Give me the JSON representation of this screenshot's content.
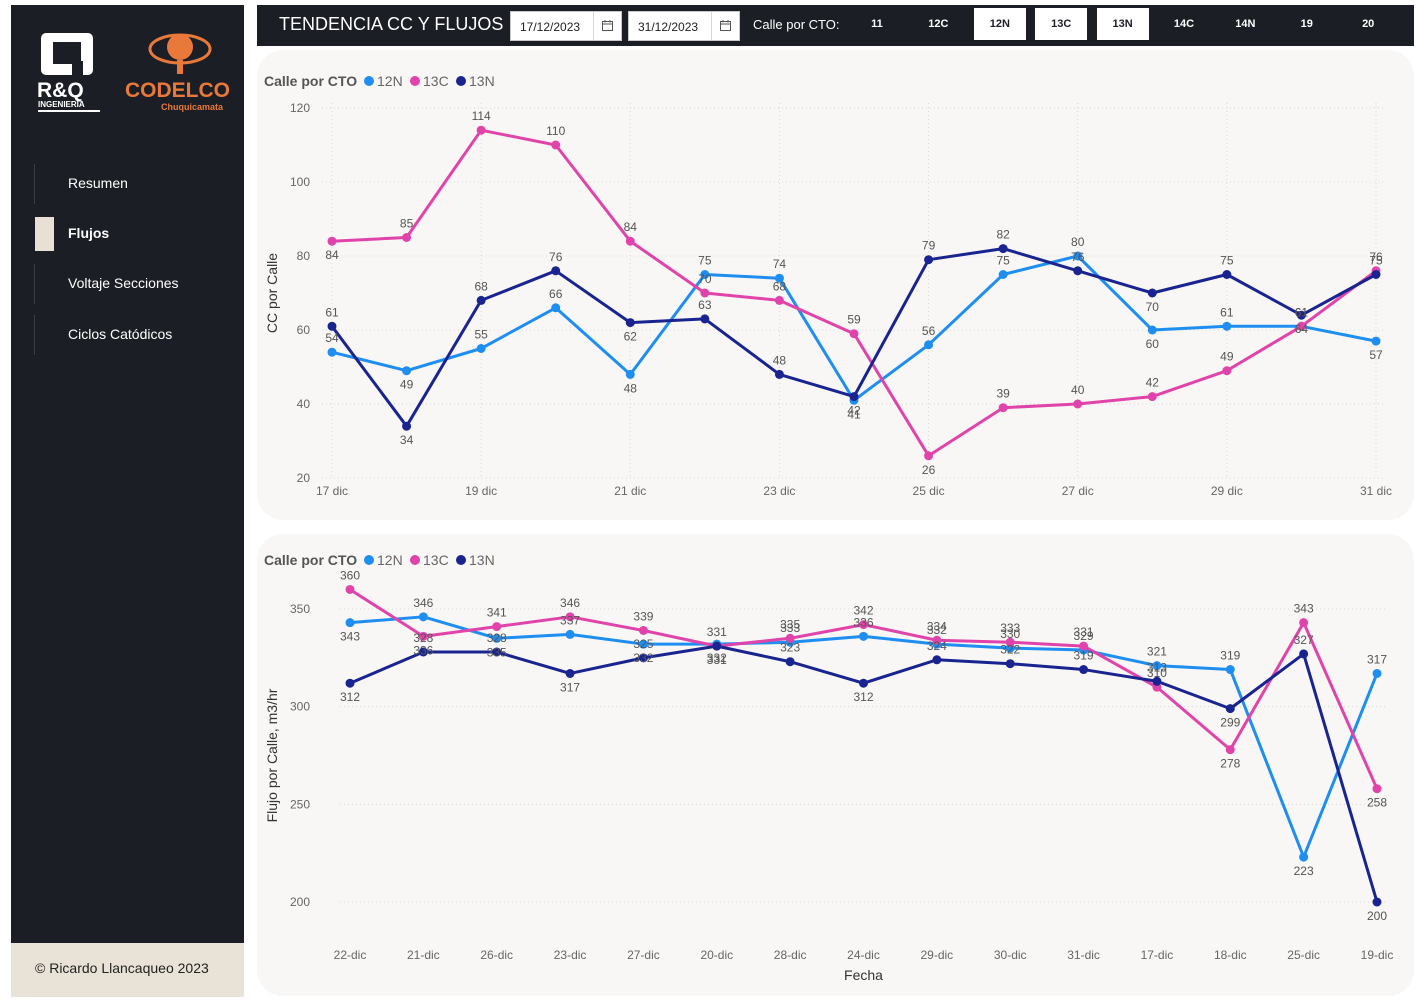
{
  "brand": {
    "logo_rq_text": "R&Q",
    "logo_rq_sub": "INGENIERIA",
    "logo_codelco": "CODELCO",
    "logo_codelco_sub": "Chuquicamata"
  },
  "sidebar": {
    "items": [
      {
        "label": "Resumen",
        "active": false
      },
      {
        "label": "Flujos",
        "active": true
      },
      {
        "label": "Voltaje Secciones",
        "active": false
      },
      {
        "label": "Ciclos Catódicos",
        "active": false
      }
    ],
    "footer": "© Ricardo Llancaqueo 2023"
  },
  "header": {
    "title": "TENDENCIA CC Y FLUJOS",
    "date_from": "17/12/2023",
    "date_to": "31/12/2023",
    "cto_label": "Calle por CTO:",
    "cto_buttons": [
      {
        "label": "11",
        "selected": false
      },
      {
        "label": "12C",
        "selected": false
      },
      {
        "label": "12N",
        "selected": true
      },
      {
        "label": "13C",
        "selected": true
      },
      {
        "label": "13N",
        "selected": true
      },
      {
        "label": "14C",
        "selected": false
      },
      {
        "label": "14N",
        "selected": false
      },
      {
        "label": "19",
        "selected": false
      },
      {
        "label": "20",
        "selected": false
      }
    ]
  },
  "colors": {
    "12N": "#1e8ef0",
    "13C": "#e044aa",
    "13N": "#1a2491",
    "sidebar_bg": "#1b1e25",
    "panel_bg": "#f8f7f5"
  },
  "chart_data": [
    {
      "type": "line",
      "legend_title": "Calle por CTO",
      "legend_position": "top-left",
      "ylabel": "CC por Calle",
      "xlabel": "",
      "ylim": [
        20,
        120
      ],
      "yticks": [
        20,
        40,
        60,
        80,
        100,
        120
      ],
      "grid": true,
      "x": [
        "17 dic",
        "18 dic",
        "19 dic",
        "20 dic",
        "21 dic",
        "22 dic",
        "23 dic",
        "24 dic",
        "25 dic",
        "26 dic",
        "27 dic",
        "28 dic",
        "29 dic",
        "30 dic",
        "31 dic"
      ],
      "x_tick_labels": [
        "17 dic",
        "19 dic",
        "21 dic",
        "23 dic",
        "25 dic",
        "27 dic",
        "29 dic",
        "31 dic"
      ],
      "series": [
        {
          "name": "12N",
          "values": [
            54,
            49,
            55,
            66,
            48,
            75,
            74,
            41,
            56,
            75,
            80,
            60,
            61,
            61,
            57
          ]
        },
        {
          "name": "13C",
          "values": [
            84,
            85,
            114,
            110,
            84,
            70,
            68,
            59,
            26,
            39,
            40,
            42,
            49,
            61,
            76
          ]
        },
        {
          "name": "13N",
          "values": [
            61,
            34,
            68,
            76,
            62,
            63,
            48,
            42,
            79,
            82,
            76,
            70,
            75,
            64,
            75
          ]
        }
      ]
    },
    {
      "type": "line",
      "legend_title": "Calle por CTO",
      "legend_position": "top-left",
      "ylabel": "Flujo por Calle, m3/hr",
      "xlabel": "Fecha",
      "ylim": [
        190,
        360
      ],
      "yticks": [
        200,
        250,
        300,
        350
      ],
      "grid": true,
      "categories": [
        "22-dic",
        "21-dic",
        "26-dic",
        "23-dic",
        "27-dic",
        "20-dic",
        "28-dic",
        "24-dic",
        "29-dic",
        "30-dic",
        "31-dic",
        "17-dic",
        "18-dic",
        "25-dic",
        "19-dic"
      ],
      "series": [
        {
          "name": "12N",
          "values": [
            343,
            346,
            335,
            337,
            332,
            332,
            333,
            336,
            332,
            330,
            329,
            321,
            319,
            223,
            317
          ]
        },
        {
          "name": "13C",
          "values": [
            360,
            336,
            341,
            346,
            339,
            331,
            335,
            342,
            334,
            333,
            331,
            310,
            278,
            343,
            258
          ]
        },
        {
          "name": "13N",
          "values": [
            312,
            328,
            328,
            317,
            325,
            331,
            323,
            312,
            324,
            322,
            319,
            313,
            299,
            327,
            200
          ]
        }
      ]
    }
  ]
}
